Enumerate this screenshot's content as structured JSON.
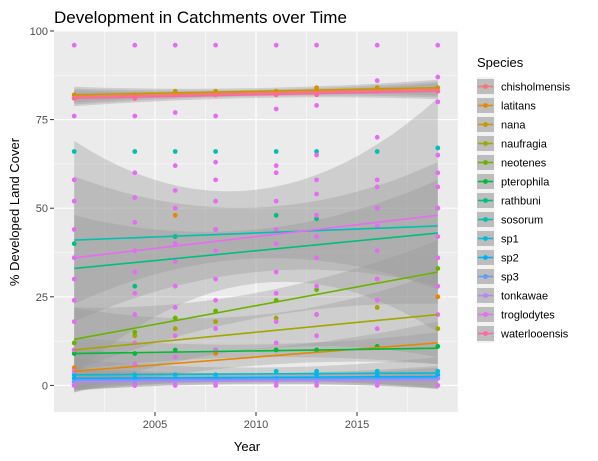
{
  "chart_data": {
    "type": "scatter",
    "title": "Development in Catchments over Time",
    "xlabel": "Year",
    "ylabel": "% Developed Land Cover",
    "xlim": [
      2000,
      2020
    ],
    "ylim": [
      -7.5,
      100
    ],
    "x_ticks": [
      2005,
      2010,
      2015
    ],
    "y_ticks": [
      0,
      25,
      50,
      75,
      100
    ],
    "x_tick_labels": [
      "2005",
      "2010",
      "2015"
    ],
    "y_tick_labels": [
      "0",
      "25",
      "50",
      "75",
      "100"
    ],
    "grid": true,
    "legend_title": "Species",
    "legend_position": "right",
    "survey_years": [
      2001,
      2004,
      2006,
      2008,
      2011,
      2013,
      2016,
      2019
    ],
    "series": [
      {
        "name": "chisholmensis",
        "color": "#F8766D",
        "trend": [
          81.5,
          83.5
        ],
        "band": 1.5,
        "points": [
          [
            2001,
            81
          ],
          [
            2004,
            81
          ],
          [
            2006,
            82
          ],
          [
            2008,
            82
          ],
          [
            2011,
            83
          ],
          [
            2013,
            83
          ],
          [
            2016,
            83
          ],
          [
            2019,
            83
          ]
        ]
      },
      {
        "name": "latitans",
        "color": "#E58700",
        "trend": [
          4,
          12
        ],
        "band": 4,
        "points": [
          [
            2001,
            5
          ],
          [
            2004,
            6
          ],
          [
            2006,
            48
          ],
          [
            2008,
            9
          ],
          [
            2011,
            10
          ],
          [
            2013,
            10
          ],
          [
            2016,
            11
          ],
          [
            2019,
            25
          ]
        ]
      },
      {
        "name": "nana",
        "color": "#C99800",
        "trend": [
          82,
          84
        ],
        "band": 1.5,
        "points": [
          [
            2001,
            82
          ],
          [
            2004,
            82
          ],
          [
            2006,
            83
          ],
          [
            2008,
            83
          ],
          [
            2011,
            83
          ],
          [
            2013,
            84
          ],
          [
            2016,
            84
          ],
          [
            2019,
            84
          ]
        ]
      },
      {
        "name": "naufragia",
        "color": "#A3A500",
        "trend": [
          10,
          20
        ],
        "band": 8,
        "points": [
          [
            2001,
            10
          ],
          [
            2004,
            14
          ],
          [
            2006,
            16
          ],
          [
            2008,
            18
          ],
          [
            2011,
            19
          ],
          [
            2013,
            20
          ],
          [
            2016,
            22
          ],
          [
            2019,
            16
          ]
        ]
      },
      {
        "name": "neotenes",
        "color": "#6BB100",
        "trend": [
          13,
          32
        ],
        "band": 6,
        "points": [
          [
            2001,
            12
          ],
          [
            2004,
            15
          ],
          [
            2006,
            19
          ],
          [
            2008,
            21
          ],
          [
            2011,
            24
          ],
          [
            2013,
            27
          ],
          [
            2016,
            30
          ],
          [
            2019,
            33
          ]
        ]
      },
      {
        "name": "pterophila",
        "color": "#00BA38",
        "trend": [
          9,
          10.5
        ],
        "band": 3,
        "points": [
          [
            2001,
            9
          ],
          [
            2004,
            9
          ],
          [
            2006,
            10
          ],
          [
            2008,
            10
          ],
          [
            2011,
            10
          ],
          [
            2013,
            10
          ],
          [
            2016,
            11
          ],
          [
            2019,
            11
          ]
        ]
      },
      {
        "name": "rathbuni",
        "color": "#00BF7D",
        "trend": [
          33,
          43
        ],
        "band": 10,
        "points": [
          [
            2001,
            40
          ],
          [
            2004,
            28
          ],
          [
            2006,
            42
          ],
          [
            2008,
            44
          ],
          [
            2011,
            48
          ],
          [
            2013,
            47
          ],
          [
            2016,
            50
          ],
          [
            2019,
            50
          ]
        ]
      },
      {
        "name": "sosorum",
        "color": "#00C0AF",
        "trend": [
          41,
          45
        ],
        "band": 12,
        "points": [
          [
            2001,
            66
          ],
          [
            2004,
            66
          ],
          [
            2006,
            66
          ],
          [
            2008,
            66
          ],
          [
            2011,
            66
          ],
          [
            2013,
            66
          ],
          [
            2016,
            66
          ],
          [
            2019,
            67
          ]
        ]
      },
      {
        "name": "sp1",
        "color": "#00BCD8",
        "trend": [
          3,
          3.5
        ],
        "band": 3,
        "points": [
          [
            2001,
            3
          ],
          [
            2004,
            3
          ],
          [
            2006,
            3
          ],
          [
            2008,
            3
          ],
          [
            2011,
            4
          ],
          [
            2013,
            4
          ],
          [
            2016,
            4
          ],
          [
            2019,
            4
          ]
        ]
      },
      {
        "name": "sp2",
        "color": "#00B0F6",
        "trend": [
          2,
          2.5
        ],
        "band": 2,
        "points": [
          [
            2001,
            2
          ],
          [
            2004,
            2
          ],
          [
            2006,
            2
          ],
          [
            2008,
            2
          ],
          [
            2011,
            2
          ],
          [
            2013,
            3
          ],
          [
            2016,
            3
          ],
          [
            2019,
            3
          ]
        ]
      },
      {
        "name": "sp3",
        "color": "#619CFF",
        "trend": [
          1.5,
          2
        ],
        "band": 2,
        "points": [
          [
            2001,
            1
          ],
          [
            2004,
            1
          ],
          [
            2006,
            2
          ],
          [
            2008,
            2
          ],
          [
            2011,
            2
          ],
          [
            2013,
            2
          ],
          [
            2016,
            2
          ],
          [
            2019,
            2
          ]
        ]
      },
      {
        "name": "tonkawae",
        "color": "#B983FF",
        "trend": [
          1,
          1.5
        ],
        "band": 1.5,
        "points": [
          [
            2001,
            0
          ],
          [
            2004,
            0
          ],
          [
            2006,
            1
          ],
          [
            2008,
            1
          ],
          [
            2011,
            1
          ],
          [
            2013,
            1
          ],
          [
            2016,
            1
          ],
          [
            2019,
            2
          ]
        ]
      },
      {
        "name": "troglodytes",
        "color": "#E76BF3",
        "trend": [
          36,
          48
        ],
        "band": 22,
        "points": [
          [
            2001,
            96
          ],
          [
            2004,
            96
          ],
          [
            2006,
            96
          ],
          [
            2008,
            96
          ],
          [
            2011,
            96
          ],
          [
            2013,
            96
          ],
          [
            2016,
            96
          ],
          [
            2019,
            96
          ],
          [
            2001,
            76
          ],
          [
            2004,
            76
          ],
          [
            2006,
            77
          ],
          [
            2008,
            76
          ],
          [
            2011,
            78
          ],
          [
            2013,
            79
          ],
          [
            2016,
            86
          ],
          [
            2019,
            87
          ],
          [
            2001,
            58
          ],
          [
            2004,
            60
          ],
          [
            2006,
            62
          ],
          [
            2008,
            63
          ],
          [
            2011,
            62
          ],
          [
            2013,
            65
          ],
          [
            2016,
            70
          ],
          [
            2019,
            80
          ],
          [
            2001,
            52
          ],
          [
            2004,
            53
          ],
          [
            2006,
            55
          ],
          [
            2008,
            58
          ],
          [
            2011,
            60
          ],
          [
            2013,
            58
          ],
          [
            2016,
            58
          ],
          [
            2019,
            65
          ],
          [
            2001,
            44
          ],
          [
            2004,
            46
          ],
          [
            2006,
            50
          ],
          [
            2008,
            52
          ],
          [
            2011,
            52
          ],
          [
            2013,
            54
          ],
          [
            2016,
            56
          ],
          [
            2019,
            60
          ],
          [
            2001,
            36
          ],
          [
            2004,
            38
          ],
          [
            2006,
            40
          ],
          [
            2008,
            44
          ],
          [
            2011,
            44
          ],
          [
            2013,
            48
          ],
          [
            2016,
            50
          ],
          [
            2019,
            56
          ],
          [
            2001,
            30
          ],
          [
            2004,
            32
          ],
          [
            2006,
            35
          ],
          [
            2008,
            38
          ],
          [
            2011,
            40
          ],
          [
            2013,
            42
          ],
          [
            2016,
            45
          ],
          [
            2019,
            50
          ],
          [
            2001,
            24
          ],
          [
            2004,
            26
          ],
          [
            2006,
            28
          ],
          [
            2008,
            30
          ],
          [
            2011,
            32
          ],
          [
            2013,
            36
          ],
          [
            2016,
            38
          ],
          [
            2019,
            42
          ],
          [
            2001,
            18
          ],
          [
            2004,
            20
          ],
          [
            2006,
            22
          ],
          [
            2008,
            24
          ],
          [
            2011,
            26
          ],
          [
            2013,
            28
          ],
          [
            2016,
            30
          ],
          [
            2019,
            36
          ],
          [
            2001,
            10
          ],
          [
            2004,
            12
          ],
          [
            2006,
            14
          ],
          [
            2008,
            16
          ],
          [
            2011,
            18
          ],
          [
            2013,
            20
          ],
          [
            2016,
            24
          ],
          [
            2019,
            28
          ],
          [
            2001,
            4
          ],
          [
            2004,
            6
          ],
          [
            2006,
            8
          ],
          [
            2008,
            10
          ],
          [
            2011,
            12
          ],
          [
            2013,
            14
          ],
          [
            2016,
            16
          ],
          [
            2019,
            20
          ],
          [
            2001,
            0
          ],
          [
            2004,
            0
          ],
          [
            2006,
            0
          ],
          [
            2008,
            0
          ],
          [
            2011,
            0
          ],
          [
            2013,
            0
          ],
          [
            2016,
            0
          ],
          [
            2019,
            0
          ]
        ]
      },
      {
        "name": "waterlooensis",
        "color": "#FF67A4",
        "trend": [
          81,
          83
        ],
        "band": 1.5,
        "points": [
          [
            2001,
            81
          ],
          [
            2004,
            81
          ],
          [
            2006,
            82
          ],
          [
            2008,
            82
          ],
          [
            2011,
            82
          ],
          [
            2013,
            82
          ],
          [
            2016,
            83
          ],
          [
            2019,
            83
          ]
        ]
      }
    ]
  }
}
